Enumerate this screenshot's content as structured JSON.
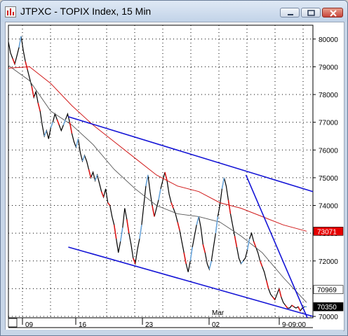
{
  "window": {
    "title": "JTPXC - TOPIX Index, 15 Min",
    "icon": "chart-app-icon",
    "buttons": [
      "minimize-icon",
      "maximize-icon",
      "close-icon"
    ]
  },
  "chart_data": {
    "type": "line",
    "title": "",
    "xlabel": "",
    "ylabel": "",
    "ylim": [
      69950,
      80500
    ],
    "yticks": [
      70000,
      71000,
      72000,
      73000,
      74000,
      75000,
      76000,
      77000,
      78000,
      79000,
      80000
    ],
    "ytick_labels": [
      "70000",
      "71000",
      "72000",
      "73000",
      "74000",
      "75000",
      "76000",
      "77000",
      "78000",
      "79000",
      "80000"
    ],
    "x_labels": [
      "09",
      "16",
      "23",
      "02",
      "9-09:00"
    ],
    "month_label": "Mar",
    "price_labels": [
      {
        "text": "73071",
        "value": 73071,
        "color": "#e60000"
      },
      {
        "text": "70969",
        "value": 70969,
        "color": "#ffffff"
      },
      {
        "text": "70350",
        "value": 70350,
        "color": "#000000"
      }
    ],
    "series": [
      {
        "x": [
          0,
          3,
          6,
          9,
          12,
          15,
          18,
          21,
          24,
          27,
          30,
          33,
          36,
          39,
          42,
          45,
          48,
          51,
          54,
          57,
          60,
          63,
          66,
          69,
          72,
          75,
          78,
          81,
          84,
          87,
          90,
          93,
          96,
          99,
          102,
          105,
          108,
          111,
          114,
          117,
          120,
          123,
          126,
          129,
          132,
          135,
          138,
          141,
          144,
          147,
          150,
          153,
          156,
          159,
          162,
          165,
          168,
          171,
          174,
          177,
          180,
          183,
          186,
          189,
          192,
          195,
          198,
          201,
          204,
          207,
          210,
          213,
          216,
          219,
          222,
          225,
          228,
          231,
          234,
          237,
          240,
          243,
          246,
          249,
          252,
          255,
          258,
          261,
          264,
          267,
          270,
          273,
          276,
          279,
          282,
          285,
          288,
          291,
          294,
          297,
          300,
          303,
          306,
          309,
          312,
          315,
          318,
          321,
          324,
          327,
          330,
          333,
          336,
          339,
          342,
          345,
          348,
          351,
          354,
          357,
          360,
          363,
          366,
          369,
          372,
          375,
          378,
          381,
          384,
          387,
          390,
          393,
          396,
          399,
          402,
          405,
          408,
          411,
          414,
          417,
          420,
          423
        ],
        "values": [
          79900,
          79500,
          79300,
          79100,
          79400,
          79700,
          80100,
          79600,
          79200,
          78900,
          78600,
          78300,
          77900,
          78100,
          77700,
          77400,
          76900,
          76500,
          76700,
          76400,
          76800,
          77000,
          77300,
          77100,
          76900,
          76700,
          76900,
          77100,
          77300,
          77000,
          76600,
          76300,
          76100,
          76400,
          75900,
          75600,
          75800,
          75600,
          75300,
          75000,
          75200,
          74900,
          75100,
          74800,
          74500,
          74300,
          74600,
          74100,
          74000,
          73600,
          73300,
          72800,
          72300,
          72700,
          73200,
          73900,
          73500,
          73000,
          72600,
          72100,
          71900,
          72400,
          72800,
          73300,
          74000,
          74700,
          75100,
          74500,
          74000,
          73600,
          73900,
          74200,
          74600,
          74900,
          75200,
          74900,
          74400,
          74100,
          73900,
          73700,
          73400,
          73100,
          72700,
          72300,
          71900,
          71600,
          72000,
          72500,
          72900,
          73300,
          73600,
          73200,
          72600,
          72300,
          71900,
          71700,
          72000,
          72500,
          73000,
          73600,
          74000,
          74600,
          75000,
          74700,
          74200,
          73700,
          73300,
          72900,
          72500,
          72100,
          71900,
          72000,
          72100,
          72400,
          72800,
          73000,
          72700,
          72500,
          72300,
          72000,
          71800,
          71600,
          71300,
          71000,
          70800,
          70700,
          70600,
          70800,
          71000,
          70700,
          70500,
          70400,
          70300,
          70300,
          70400,
          70350,
          70300,
          70350,
          70200,
          70300,
          70350,
          70350
        ],
        "color": "#000000"
      },
      {
        "x": [
          0,
          30,
          60,
          90,
          120,
          150,
          180,
          210,
          240,
          270,
          300,
          330,
          360,
          390,
          423
        ],
        "values": [
          79050,
          78500,
          77400,
          76900,
          76200,
          75300,
          74600,
          74000,
          73700,
          73600,
          73400,
          72900,
          72300,
          71400,
          70500
        ],
        "color": "#555555"
      },
      {
        "x": [
          0,
          30,
          60,
          90,
          120,
          150,
          180,
          210,
          240,
          270,
          300,
          330,
          360,
          390,
          423
        ],
        "values": [
          78950,
          79000,
          78400,
          77600,
          76900,
          76300,
          75700,
          75100,
          74700,
          74500,
          74100,
          73900,
          73600,
          73300,
          73071
        ],
        "color": "#d11a1a"
      }
    ],
    "trendlines": [
      {
        "x": [
          85,
          432
        ],
        "values": [
          77200,
          74500
        ],
        "color": "#1414d6"
      },
      {
        "x": [
          85,
          432
        ],
        "values": [
          72500,
          70000
        ],
        "color": "#1414d6"
      },
      {
        "x": [
          337,
          424
        ],
        "values": [
          75100,
          69950
        ],
        "color": "#1414d6"
      }
    ]
  }
}
